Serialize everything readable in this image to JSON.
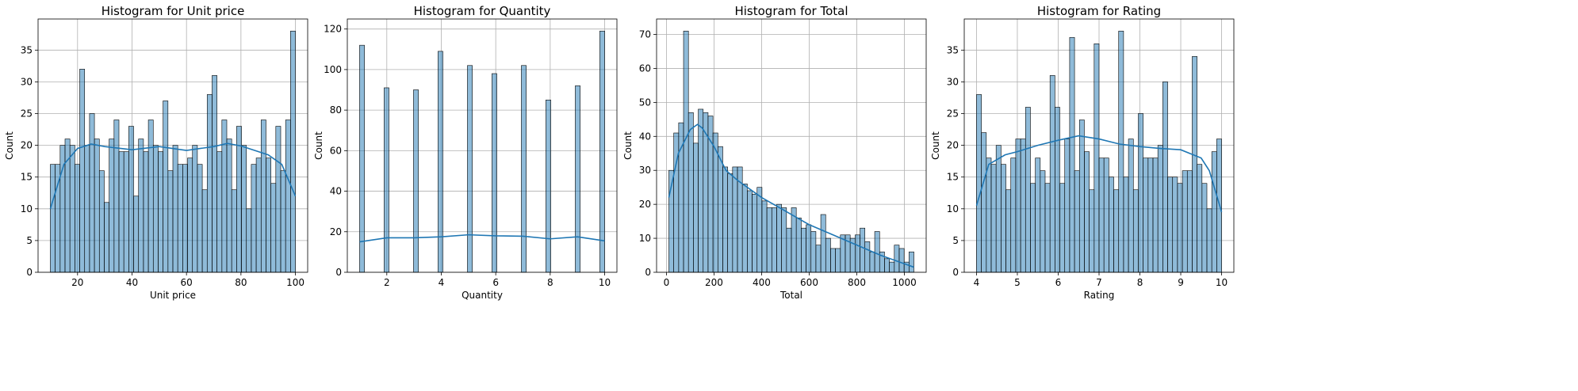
{
  "chart_data": [
    {
      "type": "histogram",
      "title": "Histogram for Unit price",
      "xlabel": "Unit price",
      "ylabel": "Count",
      "color": "#1f77b4",
      "grid": true,
      "bins": [
        10,
        11.8,
        13.6,
        15.4,
        17.2,
        19,
        20.8,
        22.6,
        24.4,
        26.2,
        28,
        29.8,
        31.6,
        33.4,
        35.2,
        37,
        38.8,
        40.6,
        42.4,
        44.2,
        46,
        47.8,
        49.6,
        51.4,
        53.2,
        55,
        56.8,
        58.6,
        60.4,
        62.2,
        64,
        65.8,
        67.6,
        69.4,
        71.2,
        73,
        74.8,
        76.6,
        78.4,
        80.2,
        82,
        83.8,
        85.6,
        87.4,
        89.2,
        91,
        92.8,
        94.6,
        96.4,
        98.2,
        100
      ],
      "counts": [
        17,
        17,
        20,
        21,
        20,
        17,
        32,
        20,
        25,
        21,
        16,
        11,
        21,
        24,
        19,
        19,
        23,
        12,
        21,
        19,
        24,
        20,
        19,
        27,
        16,
        20,
        17,
        17,
        18,
        20,
        17,
        13,
        28,
        31,
        19,
        24,
        21,
        13,
        23,
        20,
        10,
        17,
        18,
        24,
        18,
        14,
        23,
        16,
        24,
        38
      ],
      "kde_x": [
        10,
        15,
        20,
        25,
        30,
        40,
        50,
        60,
        70,
        75,
        80,
        90,
        95,
        100
      ],
      "kde_y": [
        10,
        17,
        19.5,
        20.2,
        19.8,
        19.3,
        19.8,
        19.2,
        19.8,
        20.3,
        19.9,
        18.5,
        17,
        12
      ],
      "xlim": [
        5.5,
        104.5
      ],
      "ylim": [
        0,
        39.9
      ],
      "xticks": [
        20,
        40,
        60,
        80,
        100
      ],
      "yticks": [
        0,
        5,
        10,
        15,
        20,
        25,
        30,
        35
      ]
    },
    {
      "type": "histogram",
      "title": "Histogram for Quantity",
      "xlabel": "Quantity",
      "ylabel": "Count",
      "color": "#1f77b4",
      "grid": true,
      "bins": [
        1,
        1.18,
        1.36,
        1.54,
        1.72,
        1.9,
        2.08,
        2.26,
        2.44,
        2.62,
        2.8,
        2.98,
        3.16,
        3.34,
        3.52,
        3.7,
        3.88,
        4.06,
        4.24,
        4.42,
        4.6,
        4.78,
        4.96,
        5.14,
        5.32,
        5.5,
        5.68,
        5.86,
        6.04,
        6.22,
        6.4,
        6.58,
        6.76,
        6.94,
        7.12,
        7.3,
        7.48,
        7.66,
        7.84,
        8.02,
        8.2,
        8.38,
        8.56,
        8.74,
        8.92,
        9.1,
        9.28,
        9.46,
        9.64,
        9.82,
        10
      ],
      "counts": [
        112,
        0,
        0,
        0,
        0,
        91,
        0,
        0,
        0,
        0,
        0,
        90,
        0,
        0,
        0,
        0,
        109,
        0,
        0,
        0,
        0,
        0,
        102,
        0,
        0,
        0,
        0,
        98,
        0,
        0,
        0,
        0,
        0,
        102,
        0,
        0,
        0,
        0,
        85,
        0,
        0,
        0,
        0,
        0,
        92,
        0,
        0,
        0,
        0,
        119
      ],
      "kde_x": [
        1,
        2,
        3,
        4,
        5,
        6,
        7,
        8,
        9,
        10
      ],
      "kde_y": [
        15,
        17,
        17,
        17.5,
        18.5,
        18,
        17.8,
        16.5,
        17.5,
        15.5
      ],
      "xlim": [
        0.55,
        10.45
      ],
      "ylim": [
        0,
        124.95
      ],
      "xticks": [
        2,
        4,
        6,
        8,
        10
      ],
      "yticks": [
        0,
        20,
        40,
        60,
        80,
        100,
        120
      ]
    },
    {
      "type": "histogram",
      "title": "Histogram for Total",
      "xlabel": "Total",
      "ylabel": "Count",
      "color": "#1f77b4",
      "grid": true,
      "bins": [
        10,
        30.6,
        51.2,
        71.8,
        92.4,
        113,
        133.6,
        154.2,
        174.8,
        195.4,
        216,
        236.6,
        257.2,
        277.8,
        298.4,
        319,
        339.6,
        360.2,
        380.8,
        401.4,
        422,
        442.6,
        463.2,
        483.8,
        504.4,
        525,
        545.6,
        566.2,
        586.8,
        607.4,
        628,
        648.6,
        669.2,
        689.8,
        710.4,
        731,
        751.6,
        772.2,
        792.8,
        813.4,
        834,
        854.6,
        875.2,
        895.8,
        916.4,
        937,
        957.6,
        978.2,
        998.8,
        1019.4,
        1040
      ],
      "counts": [
        30,
        41,
        44,
        71,
        47,
        38,
        48,
        47,
        46,
        41,
        37,
        31,
        29,
        31,
        31,
        26,
        24,
        23,
        25,
        21,
        19,
        19,
        20,
        19,
        13,
        19,
        16,
        13,
        14,
        12,
        8,
        17,
        10,
        7,
        7,
        11,
        11,
        10,
        11,
        13,
        9,
        6,
        12,
        6,
        4,
        3,
        8,
        7,
        3,
        6
      ],
      "kde_x": [
        10,
        50,
        100,
        130,
        150,
        200,
        250,
        300,
        400,
        500,
        600,
        700,
        800,
        900,
        1000,
        1040
      ],
      "kde_y": [
        22,
        35,
        42,
        43.5,
        42.5,
        37,
        30,
        27,
        22,
        18,
        14,
        11,
        8,
        5,
        2.5,
        1.5
      ],
      "xlim": [
        -41.6,
        1091.6
      ],
      "ylim": [
        0,
        74.55
      ],
      "xticks": [
        0,
        200,
        400,
        600,
        800,
        1000
      ],
      "yticks": [
        0,
        10,
        20,
        30,
        40,
        50,
        60,
        70
      ]
    },
    {
      "type": "histogram",
      "title": "Histogram for Rating",
      "xlabel": "Rating",
      "ylabel": "Count",
      "color": "#1f77b4",
      "grid": true,
      "bins": [
        4,
        4.12,
        4.24,
        4.36,
        4.48,
        4.6,
        4.72,
        4.84,
        4.96,
        5.08,
        5.2,
        5.32,
        5.44,
        5.56,
        5.68,
        5.8,
        5.92,
        6.04,
        6.16,
        6.28,
        6.4,
        6.52,
        6.64,
        6.76,
        6.88,
        7,
        7.12,
        7.24,
        7.36,
        7.48,
        7.6,
        7.72,
        7.84,
        7.96,
        8.08,
        8.2,
        8.32,
        8.44,
        8.56,
        8.68,
        8.8,
        8.92,
        9.04,
        9.16,
        9.28,
        9.4,
        9.52,
        9.64,
        9.76,
        9.88,
        10
      ],
      "counts": [
        28,
        22,
        18,
        17,
        20,
        17,
        13,
        18,
        21,
        21,
        26,
        14,
        18,
        16,
        14,
        31,
        26,
        14,
        21,
        37,
        16,
        24,
        19,
        13,
        36,
        18,
        18,
        15,
        13,
        38,
        15,
        21,
        13,
        25,
        18,
        18,
        18,
        20,
        30,
        15,
        15,
        14,
        16,
        16,
        34,
        17,
        14,
        10,
        19,
        21
      ],
      "kde_x": [
        4,
        4.3,
        4.7,
        5,
        5.5,
        6,
        6.5,
        7,
        7.5,
        8,
        8.5,
        9,
        9.5,
        9.7,
        10
      ],
      "kde_y": [
        10.5,
        17,
        18.5,
        19,
        20,
        20.8,
        21.5,
        21,
        20.2,
        19.8,
        19.5,
        19.3,
        18,
        16,
        9.5
      ],
      "xlim": [
        3.7,
        10.3
      ],
      "ylim": [
        0,
        39.9
      ],
      "xticks": [
        4,
        5,
        6,
        7,
        8,
        9,
        10
      ],
      "yticks": [
        0,
        5,
        10,
        15,
        20,
        25,
        30,
        35
      ]
    }
  ]
}
